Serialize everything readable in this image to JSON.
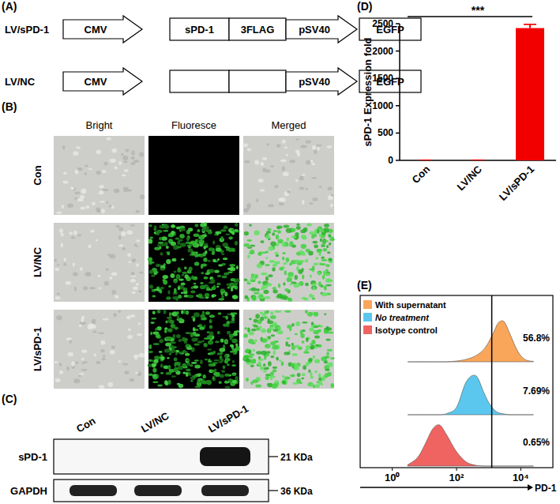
{
  "construct": {
    "label": "(A)",
    "rows": [
      {
        "name": "LV/sPD-1",
        "elements": [
          {
            "kind": "promoter",
            "label": "CMV"
          },
          {
            "kind": "gene",
            "label": "sPD-1"
          },
          {
            "kind": "gene",
            "label": "3FLAG"
          },
          {
            "kind": "promoter",
            "label": "pSV40"
          },
          {
            "kind": "gene",
            "label": "EGFP"
          }
        ]
      },
      {
        "name": "LV/NC",
        "elements": [
          {
            "kind": "promoter",
            "label": "CMV"
          },
          {
            "kind": "empty"
          },
          {
            "kind": "empty"
          },
          {
            "kind": "promoter",
            "label": "pSV40"
          },
          {
            "kind": "gene",
            "label": "EGFP"
          }
        ]
      }
    ]
  },
  "microscopy": {
    "label": "(B)",
    "columns": [
      "Bright",
      "Fluoresce",
      "Merged"
    ],
    "rows": [
      "Con",
      "LV/NC",
      "LV/sPD-1"
    ],
    "fluorescent": [
      false,
      true,
      true
    ]
  },
  "western_blot": {
    "label": "(C)",
    "lanes": [
      "Con",
      "LV/NC",
      "LV/sPD-1"
    ],
    "blots": [
      {
        "protein": "sPD-1",
        "size": "21 KDa",
        "bands": [
          false,
          false,
          true
        ]
      },
      {
        "protein": "GAPDH",
        "size": "36 KDa",
        "bands": [
          true,
          true,
          true
        ]
      }
    ]
  },
  "chart_data": [
    {
      "type": "bar",
      "panel_label": "(D)",
      "y_label": "sPD-1 Expression fold",
      "categories": [
        "Con",
        "LV/NC",
        "LV/sPD-1"
      ],
      "values": [
        1,
        1.2,
        2420
      ],
      "errors": [
        0,
        0.2,
        70
      ],
      "color": "#f20000",
      "ylim": [
        0,
        2500
      ],
      "yticks": [
        0,
        500,
        1000,
        1500,
        2000,
        2500
      ],
      "annotation": "***"
    },
    {
      "type": "area",
      "panel_label": "(E)",
      "x_label": "PD-1",
      "log": "x",
      "xlim": [
        0.1,
        100000
      ],
      "xticks": [
        {
          "value": 1,
          "label": "10⁰"
        },
        {
          "value": 100,
          "label": "10²"
        },
        {
          "value": 10000,
          "label": "10⁴"
        }
      ],
      "ylim": [
        0,
        100
      ],
      "tick_labels": "x",
      "legend": "upper left",
      "gate": 1250,
      "x": [
        3,
        6,
        10,
        18,
        30,
        50,
        100,
        200,
        400,
        700,
        1000,
        1500,
        2000,
        3000,
        4500,
        7000,
        10000,
        15000,
        25000
      ],
      "series": [
        {
          "name": "With supernatant",
          "color": "#f9a65a",
          "gated_label": "56.8%",
          "values": [
            0,
            0,
            0,
            0,
            0,
            0,
            2,
            6,
            15,
            30,
            48,
            75,
            95,
            98,
            70,
            35,
            15,
            4,
            1
          ]
        },
        {
          "name": "No treatment",
          "color": "#5cc7ee",
          "gated_label": "7.69%",
          "values": [
            0,
            0,
            0,
            0,
            0,
            3,
            18,
            80,
            95,
            55,
            30,
            12,
            5,
            2,
            0,
            0,
            0,
            0,
            0
          ]
        },
        {
          "name": "Isotype control",
          "color": "#ef6461",
          "gated_label": "0.65%",
          "values": [
            3,
            20,
            50,
            90,
            100,
            75,
            35,
            10,
            2,
            0,
            0,
            0,
            0,
            0,
            0,
            0,
            0,
            0,
            0
          ]
        }
      ]
    }
  ]
}
